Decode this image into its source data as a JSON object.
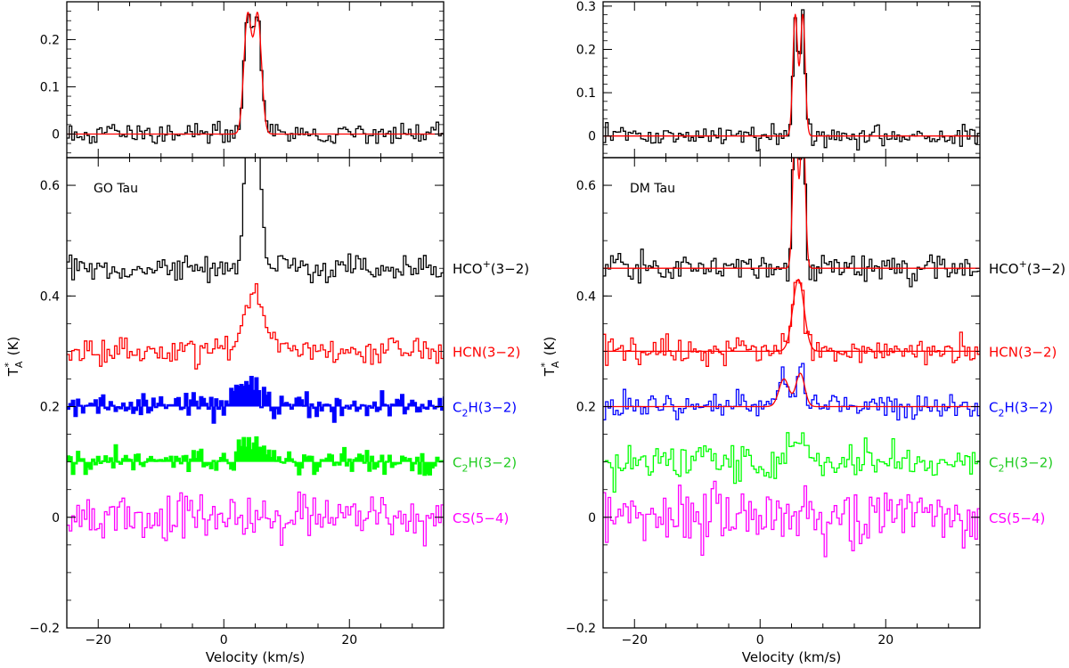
{
  "chart_data": [
    {
      "type": "line",
      "source": "GO Tau",
      "xlabel": "Velocity (km/s)",
      "ylabel": "T_A* (K)",
      "xlim": [
        -25,
        35
      ],
      "x_ticks": [
        "−20",
        "0",
        "20"
      ],
      "top_panel": {
        "ylim": [
          -0.05,
          0.28
        ],
        "y_ticks": [
          "0",
          "0.1",
          "0.2"
        ],
        "series": [
          {
            "name": "HCO+ spectrum",
            "color": "#000000",
            "noise": 0.012,
            "peaks": [
              [
                3.8,
                0.6,
                0.25
              ],
              [
                5.4,
                0.6,
                0.26
              ]
            ]
          },
          {
            "name": "fit",
            "color": "#ff0000",
            "fit": true,
            "peaks": [
              [
                3.8,
                0.6,
                0.25
              ],
              [
                5.4,
                0.6,
                0.25
              ]
            ]
          }
        ]
      },
      "bottom_panel": {
        "ylim": [
          -0.2,
          0.65
        ],
        "y_ticks": [
          "−0.2",
          "0",
          "0.2",
          "0.4",
          "0.6"
        ],
        "series": [
          {
            "name": "HCO+(3−2)",
            "label_main": "HCO",
            "label_sup": "+",
            "label_rest": "(3−2)",
            "color": "#000000",
            "offset": 0.45,
            "noise": 0.012,
            "peaks": [
              [
                3.8,
                0.6,
                0.25
              ],
              [
                5.4,
                0.6,
                0.26
              ]
            ]
          },
          {
            "name": "HCN(3−2)",
            "label_main": "HCN(3−2)",
            "color": "#ff0000",
            "offset": 0.3,
            "noise": 0.012,
            "peaks": [
              [
                4.6,
                1.6,
                0.1
              ]
            ]
          },
          {
            "name": "C2H(3−2)",
            "label_main": "C",
            "label_sub": "2",
            "label_rest": "H(3−2)",
            "color": "#0000ff",
            "offset": 0.2,
            "noise": 0.012,
            "filled": true,
            "peaks": [
              [
                4.0,
                1.8,
                0.05
              ]
            ]
          },
          {
            "name": "C2H(3−2)",
            "label_main": "C",
            "label_sub": "2",
            "label_rest": "H(3−2)",
            "color": "#00ff00",
            "offset": 0.1,
            "noise": 0.012,
            "filled": true,
            "peaks": [
              [
                4.0,
                1.8,
                0.03
              ]
            ]
          },
          {
            "name": "CS(5−4)",
            "label_main": "CS(5−4)",
            "color": "#ff00ff",
            "offset": 0.0,
            "noise": 0.02,
            "peaks": []
          }
        ]
      }
    },
    {
      "type": "line",
      "source": "DM Tau",
      "xlabel": "Velocity (km/s)",
      "ylabel": "T_A* (K)",
      "xlim": [
        -25,
        35
      ],
      "x_ticks": [
        "−20",
        "0",
        "20"
      ],
      "top_panel": {
        "ylim": [
          -0.05,
          0.31
        ],
        "y_ticks": [
          "0",
          "0.1",
          "0.2",
          "0.3"
        ],
        "series": [
          {
            "name": "HCO+ spectrum",
            "color": "#000000",
            "noise": 0.012,
            "peaks": [
              [
                5.6,
                0.38,
                0.28
              ],
              [
                6.8,
                0.38,
                0.29
              ]
            ]
          },
          {
            "name": "fit",
            "color": "#ff0000",
            "fit": true,
            "peaks": [
              [
                5.6,
                0.38,
                0.28
              ],
              [
                6.8,
                0.38,
                0.28
              ]
            ]
          }
        ]
      },
      "bottom_panel": {
        "ylim": [
          -0.2,
          0.65
        ],
        "y_ticks": [
          "−0.2",
          "0",
          "0.2",
          "0.4",
          "0.6"
        ],
        "series": [
          {
            "name": "HCO+(3−2)",
            "label_main": "HCO",
            "label_sup": "+",
            "label_rest": "(3−2)",
            "color": "#000000",
            "offset": 0.45,
            "noise": 0.012,
            "peaks": [
              [
                5.6,
                0.38,
                0.28
              ],
              [
                6.8,
                0.38,
                0.29
              ]
            ],
            "fit_peaks": [
              [
                5.6,
                0.38,
                0.28
              ],
              [
                6.8,
                0.38,
                0.28
              ]
            ]
          },
          {
            "name": "HCN(3−2)",
            "label_main": "HCN(3−2)",
            "color": "#ff0000",
            "offset": 0.3,
            "noise": 0.012,
            "peaks": [
              [
                6.1,
                0.9,
                0.13
              ]
            ],
            "fit_peaks": [
              [
                6.1,
                0.9,
                0.13
              ]
            ]
          },
          {
            "name": "C2H(3−2)",
            "label_main": "C",
            "label_sub": "2",
            "label_rest": "H(3−2)",
            "color": "#0000ff",
            "offset": 0.2,
            "noise": 0.012,
            "peaks": [
              [
                3.8,
                0.7,
                0.05
              ],
              [
                6.4,
                0.6,
                0.07
              ]
            ],
            "fit_peaks": [
              [
                3.8,
                0.8,
                0.05
              ],
              [
                6.4,
                0.7,
                0.06
              ]
            ]
          },
          {
            "name": "C2H(3−2)",
            "label_main": "C",
            "label_sub": "2",
            "label_rest": "H(3−2)",
            "color": "#00ff00",
            "offset": 0.1,
            "noise": 0.015,
            "peaks": [
              [
                6.0,
                1.8,
                0.03
              ]
            ]
          },
          {
            "name": "CS(5−4)",
            "label_main": "CS(5−4)",
            "color": "#ff00ff",
            "offset": 0.0,
            "noise": 0.025,
            "peaks": []
          }
        ]
      }
    }
  ]
}
